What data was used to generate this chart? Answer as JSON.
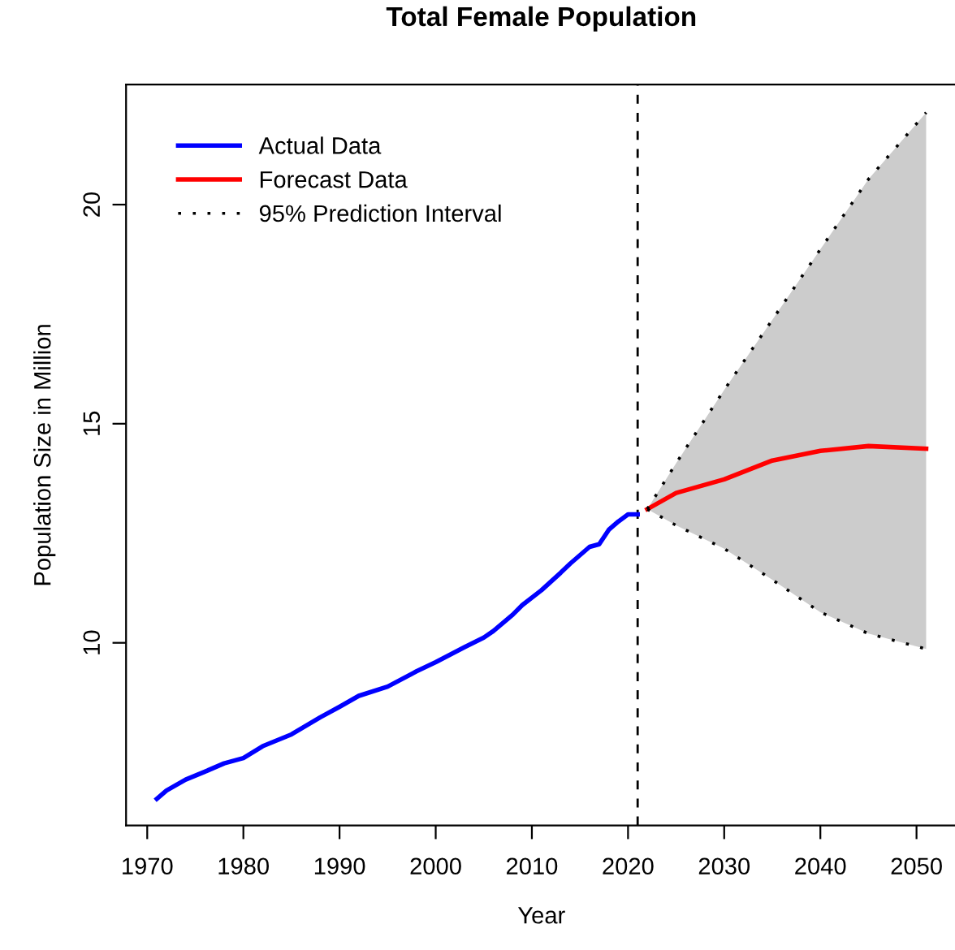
{
  "chart_data": {
    "type": "line",
    "title": "Total Female Population",
    "xlabel": "Year",
    "ylabel": "Population Size in Million",
    "xlim": [
      1967.8,
      2054.2
    ],
    "ylim": [
      5.83,
      22.74
    ],
    "xticks": [
      1970,
      1980,
      1990,
      2000,
      2010,
      2020,
      2030,
      2040,
      2050
    ],
    "yticks": [
      10,
      15,
      20
    ],
    "grid": false,
    "legend": "top left",
    "series": [
      {
        "name": "Actual Data",
        "color": "#0000ff",
        "line_style": "solid",
        "x": [
          1971,
          1972,
          1974,
          1976,
          1978,
          1980,
          1982,
          1985,
          1988,
          1990,
          1992,
          1995,
          1998,
          2000,
          2003,
          2005,
          2006,
          2008,
          2009,
          2011,
          2013,
          2014,
          2016,
          2017,
          2018,
          2019,
          2020,
          2021
        ],
        "values": [
          6.44,
          6.63,
          6.88,
          7.06,
          7.25,
          7.37,
          7.64,
          7.91,
          8.3,
          8.54,
          8.79,
          9.0,
          9.35,
          9.56,
          9.9,
          10.12,
          10.27,
          10.64,
          10.86,
          11.2,
          11.6,
          11.81,
          12.19,
          12.25,
          12.58,
          12.77,
          12.93,
          12.93
        ]
      },
      {
        "name": "Forecast Data",
        "color": "#ff0000",
        "line_style": "solid",
        "x": [
          2022,
          2025,
          2030,
          2035,
          2040,
          2045,
          2051
        ],
        "values": [
          13.05,
          13.42,
          13.73,
          14.16,
          14.38,
          14.49,
          14.43
        ],
        "lower": [
          13.05,
          12.68,
          12.15,
          11.44,
          10.7,
          10.21,
          9.86
        ],
        "upper": [
          13.05,
          14.1,
          15.77,
          17.37,
          18.98,
          20.58,
          22.1
        ]
      },
      {
        "name": "95% Prediction Interval",
        "color": "#000000",
        "line_style": "dotted",
        "x": [
          2022,
          2025,
          2030,
          2035,
          2040,
          2045,
          2051
        ],
        "values": [
          13.05,
          14.1,
          15.77,
          17.37,
          18.98,
          20.58,
          22.1
        ]
      },
      {
        "color": "#000000",
        "line_style": "dotted",
        "x": [
          2022,
          2025,
          2030,
          2035,
          2040,
          2045,
          2051
        ],
        "values": [
          13.05,
          12.68,
          12.15,
          11.44,
          10.7,
          10.21,
          9.86
        ]
      }
    ],
    "ref_lines": [
      {
        "axis": "x",
        "value": 2021,
        "color": "#000000",
        "line_style": "dashed"
      }
    ]
  }
}
